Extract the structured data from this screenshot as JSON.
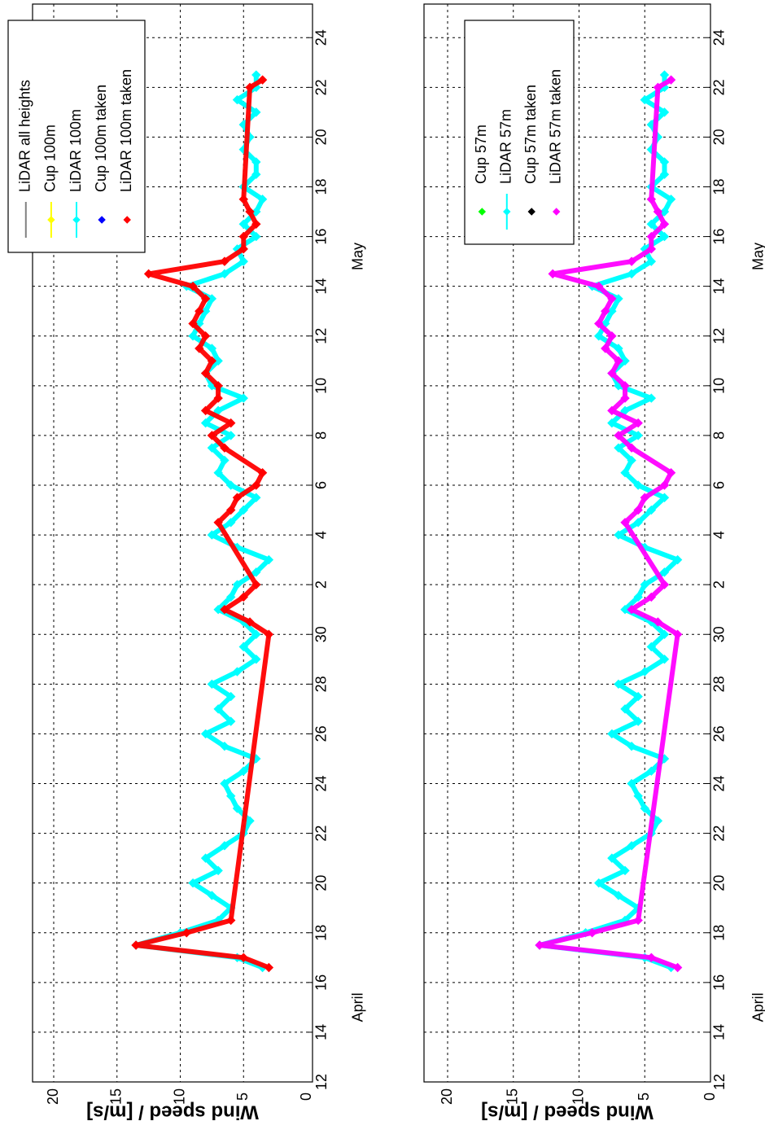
{
  "chart_data": [
    {
      "type": "line",
      "panel": "top",
      "title": "",
      "orientation": "rotated 90 degrees clockwise (wind speed decreases toward the right, time increases downward)",
      "ylabel": "Wind speed / [m/s]",
      "xlabel": "",
      "ylim": [
        0,
        22
      ],
      "y_ticks": [
        "0",
        "5",
        "10",
        "15",
        "20"
      ],
      "x_range_days": [
        "April 12",
        "May 27"
      ],
      "x_ticks": [
        "12",
        "14",
        "16",
        "18",
        "20",
        "22",
        "24",
        "26",
        "28",
        "30",
        "2",
        "4",
        "6",
        "8",
        "10",
        "12",
        "14",
        "16",
        "18",
        "20",
        "22",
        "24",
        "26"
      ],
      "month_labels": [
        "April",
        "May"
      ],
      "grid": true,
      "legend_position": "top-left (upper end of panel)",
      "legend": [
        {
          "label": "LiDAR all heights",
          "color": "#808080",
          "marker": "line"
        },
        {
          "label": "Cup 100m",
          "color": "#ffff00",
          "marker": "line-diamond"
        },
        {
          "label": "LiDAR 100m",
          "color": "#00ffff",
          "marker": "line-diamond"
        },
        {
          "label": "Cup 100m taken",
          "color": "#0000ff",
          "marker": "diamond"
        },
        {
          "label": "LiDAR 100m taken",
          "color": "#ff0000",
          "marker": "diamond"
        }
      ],
      "series": [
        {
          "name": "LiDAR 100m",
          "color": "#00ffff",
          "x_day": [
            16.6,
            17.0,
            17.5,
            18.0,
            18.5,
            19.0,
            19.5,
            20.0,
            20.5,
            21.0,
            21.5,
            22.0,
            22.5,
            23.0,
            23.5,
            24.0,
            24.5,
            25.0,
            25.5,
            26.0,
            26.5,
            27.0,
            27.5,
            28.0,
            28.5,
            29.0,
            29.5,
            30.0,
            30.5,
            31.0,
            31.5,
            32.0,
            32.5,
            33.0,
            33.5,
            34.0,
            34.5,
            35.0,
            35.5,
            36.0,
            36.5,
            37.0,
            37.5,
            38.0,
            38.5,
            39.0,
            39.5,
            40.0,
            40.5,
            41.0,
            41.5,
            42.0,
            42.5,
            43.0,
            43.5,
            44.0,
            44.5,
            45.0,
            45.5,
            46.0,
            46.5,
            47.0,
            47.5,
            48.0,
            48.5,
            49.0,
            49.5,
            50.0,
            50.5,
            51.0,
            51.5,
            52.0,
            52.5
          ],
          "values": [
            3.5,
            5.5,
            13.5,
            10.0,
            7.0,
            6.0,
            7.5,
            9.0,
            7.0,
            8.0,
            6.5,
            5.0,
            4.5,
            5.5,
            6.0,
            6.5,
            5.0,
            4.0,
            6.5,
            8.0,
            6.0,
            7.0,
            6.0,
            7.5,
            5.5,
            4.0,
            5.0,
            4.0,
            5.0,
            7.0,
            6.0,
            5.5,
            4.0,
            3.0,
            5.5,
            7.5,
            6.0,
            5.0,
            4.0,
            6.0,
            7.0,
            6.5,
            7.5,
            6.0,
            8.0,
            7.0,
            5.0,
            7.5,
            8.0,
            7.0,
            7.5,
            9.0,
            8.5,
            8.0,
            7.5,
            9.5,
            6.5,
            5.0,
            5.5,
            4.0,
            5.0,
            4.0,
            3.5,
            5.0,
            4.0,
            4.0,
            5.0,
            4.5,
            5.0,
            4.0,
            5.5,
            4.0,
            4.0
          ]
        },
        {
          "name": "LiDAR 100m taken",
          "color": "#ff0000",
          "x_day": [
            16.6,
            17.0,
            17.5,
            18.0,
            18.5,
            30.0,
            30.5,
            31.0,
            31.5,
            32.0,
            34.5,
            35.0,
            35.5,
            36.0,
            36.5,
            37.5,
            38.0,
            38.5,
            39.0,
            39.5,
            40.0,
            40.5,
            41.0,
            41.5,
            42.0,
            42.5,
            43.0,
            43.5,
            44.0,
            44.5,
            45.0,
            45.5,
            46.0,
            46.5,
            47.0,
            47.5,
            52.0,
            52.3
          ],
          "values": [
            3.0,
            5.0,
            13.5,
            9.5,
            6.0,
            3.0,
            4.5,
            6.5,
            5.0,
            4.0,
            7.0,
            6.0,
            5.5,
            4.0,
            3.5,
            6.5,
            7.5,
            6.0,
            8.0,
            7.0,
            7.0,
            8.0,
            7.5,
            8.5,
            8.0,
            9.0,
            8.5,
            8.0,
            9.0,
            12.5,
            6.5,
            5.0,
            5.0,
            4.0,
            4.5,
            5.0,
            4.5,
            3.5
          ]
        }
      ]
    },
    {
      "type": "line",
      "panel": "bottom",
      "title": "",
      "orientation": "rotated 90 degrees clockwise (wind speed decreases toward the right, time increases downward)",
      "ylabel": "Wind speed / [m/s]",
      "xlabel": "",
      "ylim": [
        0,
        22
      ],
      "y_ticks": [
        "0",
        "5",
        "10",
        "15",
        "20"
      ],
      "x_range_days": [
        "April 12",
        "May 27"
      ],
      "x_ticks": [
        "12",
        "14",
        "16",
        "18",
        "20",
        "22",
        "24",
        "26",
        "28",
        "30",
        "2",
        "4",
        "6",
        "8",
        "10",
        "12",
        "14",
        "16",
        "18",
        "20",
        "22",
        "24",
        "26"
      ],
      "month_labels": [
        "April",
        "May"
      ],
      "grid": true,
      "legend_position": "top-left (upper end of panel)",
      "legend": [
        {
          "label": "Cup 57m",
          "color": "#00ff00",
          "marker": "diamond"
        },
        {
          "label": "LiDAR 57m",
          "color": "#00ffff",
          "marker": "line-diamond"
        },
        {
          "label": "Cup 57m taken",
          "color": "#000000",
          "marker": "diamond"
        },
        {
          "label": "LiDAR 57m taken",
          "color": "#ff00ff",
          "marker": "diamond"
        }
      ],
      "series": [
        {
          "name": "LiDAR 57m",
          "color": "#00ffff",
          "x_day": [
            16.6,
            17.0,
            17.5,
            18.0,
            18.5,
            19.0,
            19.5,
            20.0,
            20.5,
            21.0,
            21.5,
            22.0,
            22.5,
            23.0,
            23.5,
            24.0,
            24.5,
            25.0,
            25.5,
            26.0,
            26.5,
            27.0,
            27.5,
            28.0,
            28.5,
            29.0,
            29.5,
            30.0,
            30.5,
            31.0,
            31.5,
            32.0,
            32.5,
            33.0,
            33.5,
            34.0,
            34.5,
            35.0,
            35.5,
            36.0,
            36.5,
            37.0,
            37.5,
            38.0,
            38.5,
            39.0,
            39.5,
            40.0,
            40.5,
            41.0,
            41.5,
            42.0,
            42.5,
            43.0,
            43.5,
            44.0,
            44.5,
            45.0,
            45.5,
            46.0,
            46.5,
            47.0,
            47.5,
            48.0,
            48.5,
            49.0,
            49.5,
            50.0,
            50.5,
            51.0,
            51.5,
            52.0,
            52.5
          ],
          "values": [
            3.0,
            5.0,
            13.0,
            9.5,
            6.5,
            5.5,
            7.0,
            8.5,
            6.5,
            7.5,
            6.0,
            4.5,
            4.0,
            5.0,
            5.5,
            6.0,
            4.5,
            3.5,
            6.0,
            7.5,
            5.5,
            6.5,
            5.5,
            7.0,
            5.0,
            3.5,
            4.5,
            3.5,
            4.5,
            6.5,
            5.5,
            5.0,
            3.5,
            2.5,
            5.0,
            7.0,
            5.5,
            4.5,
            3.5,
            5.5,
            6.5,
            6.0,
            7.0,
            5.5,
            7.5,
            6.5,
            4.5,
            7.0,
            7.5,
            6.5,
            7.0,
            8.5,
            8.0,
            7.5,
            7.0,
            9.0,
            6.0,
            4.5,
            5.0,
            3.5,
            4.5,
            3.5,
            3.0,
            4.5,
            3.5,
            3.5,
            4.5,
            4.0,
            4.5,
            3.5,
            5.0,
            3.5,
            3.5
          ]
        },
        {
          "name": "LiDAR 57m taken",
          "color": "#ff00ff",
          "x_day": [
            16.6,
            17.0,
            17.5,
            18.0,
            18.5,
            30.0,
            30.5,
            31.0,
            31.5,
            32.0,
            34.5,
            35.0,
            35.5,
            36.0,
            36.5,
            37.5,
            38.0,
            38.5,
            39.0,
            39.5,
            40.0,
            40.5,
            41.0,
            41.5,
            42.0,
            42.5,
            43.0,
            43.5,
            44.0,
            44.5,
            45.0,
            45.5,
            46.0,
            46.5,
            47.0,
            47.5,
            52.0,
            52.3
          ],
          "values": [
            2.5,
            4.5,
            13.0,
            9.0,
            5.5,
            2.5,
            4.0,
            6.0,
            4.5,
            3.5,
            6.5,
            5.5,
            5.0,
            3.5,
            3.0,
            6.0,
            7.0,
            5.5,
            7.5,
            6.5,
            6.5,
            7.5,
            7.0,
            8.0,
            7.5,
            8.5,
            8.0,
            7.5,
            8.5,
            12.0,
            6.0,
            4.5,
            4.5,
            3.5,
            4.0,
            4.5,
            4.0,
            3.0
          ]
        }
      ]
    }
  ]
}
